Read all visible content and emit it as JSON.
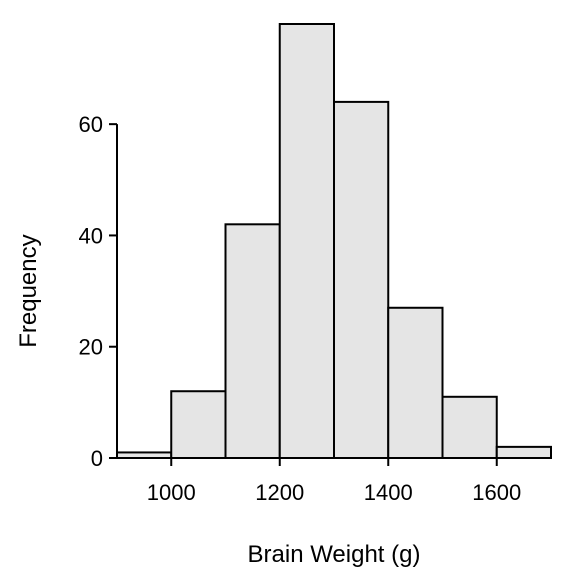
{
  "chart_data": {
    "type": "bar",
    "subtype": "histogram",
    "xlabel": "Brain Weight (g)",
    "ylabel": "Frequency",
    "bins": [
      {
        "start": 900,
        "end": 1000,
        "count": 1
      },
      {
        "start": 1000,
        "end": 1100,
        "count": 12
      },
      {
        "start": 1100,
        "end": 1200,
        "count": 42
      },
      {
        "start": 1200,
        "end": 1300,
        "count": 78
      },
      {
        "start": 1300,
        "end": 1400,
        "count": 64
      },
      {
        "start": 1400,
        "end": 1500,
        "count": 27
      },
      {
        "start": 1500,
        "end": 1600,
        "count": 11
      },
      {
        "start": 1600,
        "end": 1700,
        "count": 2
      }
    ],
    "xlim": [
      900,
      1700
    ],
    "ylim": [
      0,
      78
    ],
    "xticks": [
      {
        "value": 1000,
        "label": "1000"
      },
      {
        "value": 1200,
        "label": "1200"
      },
      {
        "value": 1400,
        "label": "1400"
      },
      {
        "value": 1600,
        "label": "1600"
      }
    ],
    "yticks": [
      {
        "value": 0,
        "label": "0"
      },
      {
        "value": 20,
        "label": "20"
      },
      {
        "value": 40,
        "label": "40"
      },
      {
        "value": 60,
        "label": "60"
      }
    ],
    "grid": false,
    "colors": {
      "bar_fill": "#e5e5e5",
      "bar_stroke": "#000000",
      "axis": "#000000"
    }
  }
}
